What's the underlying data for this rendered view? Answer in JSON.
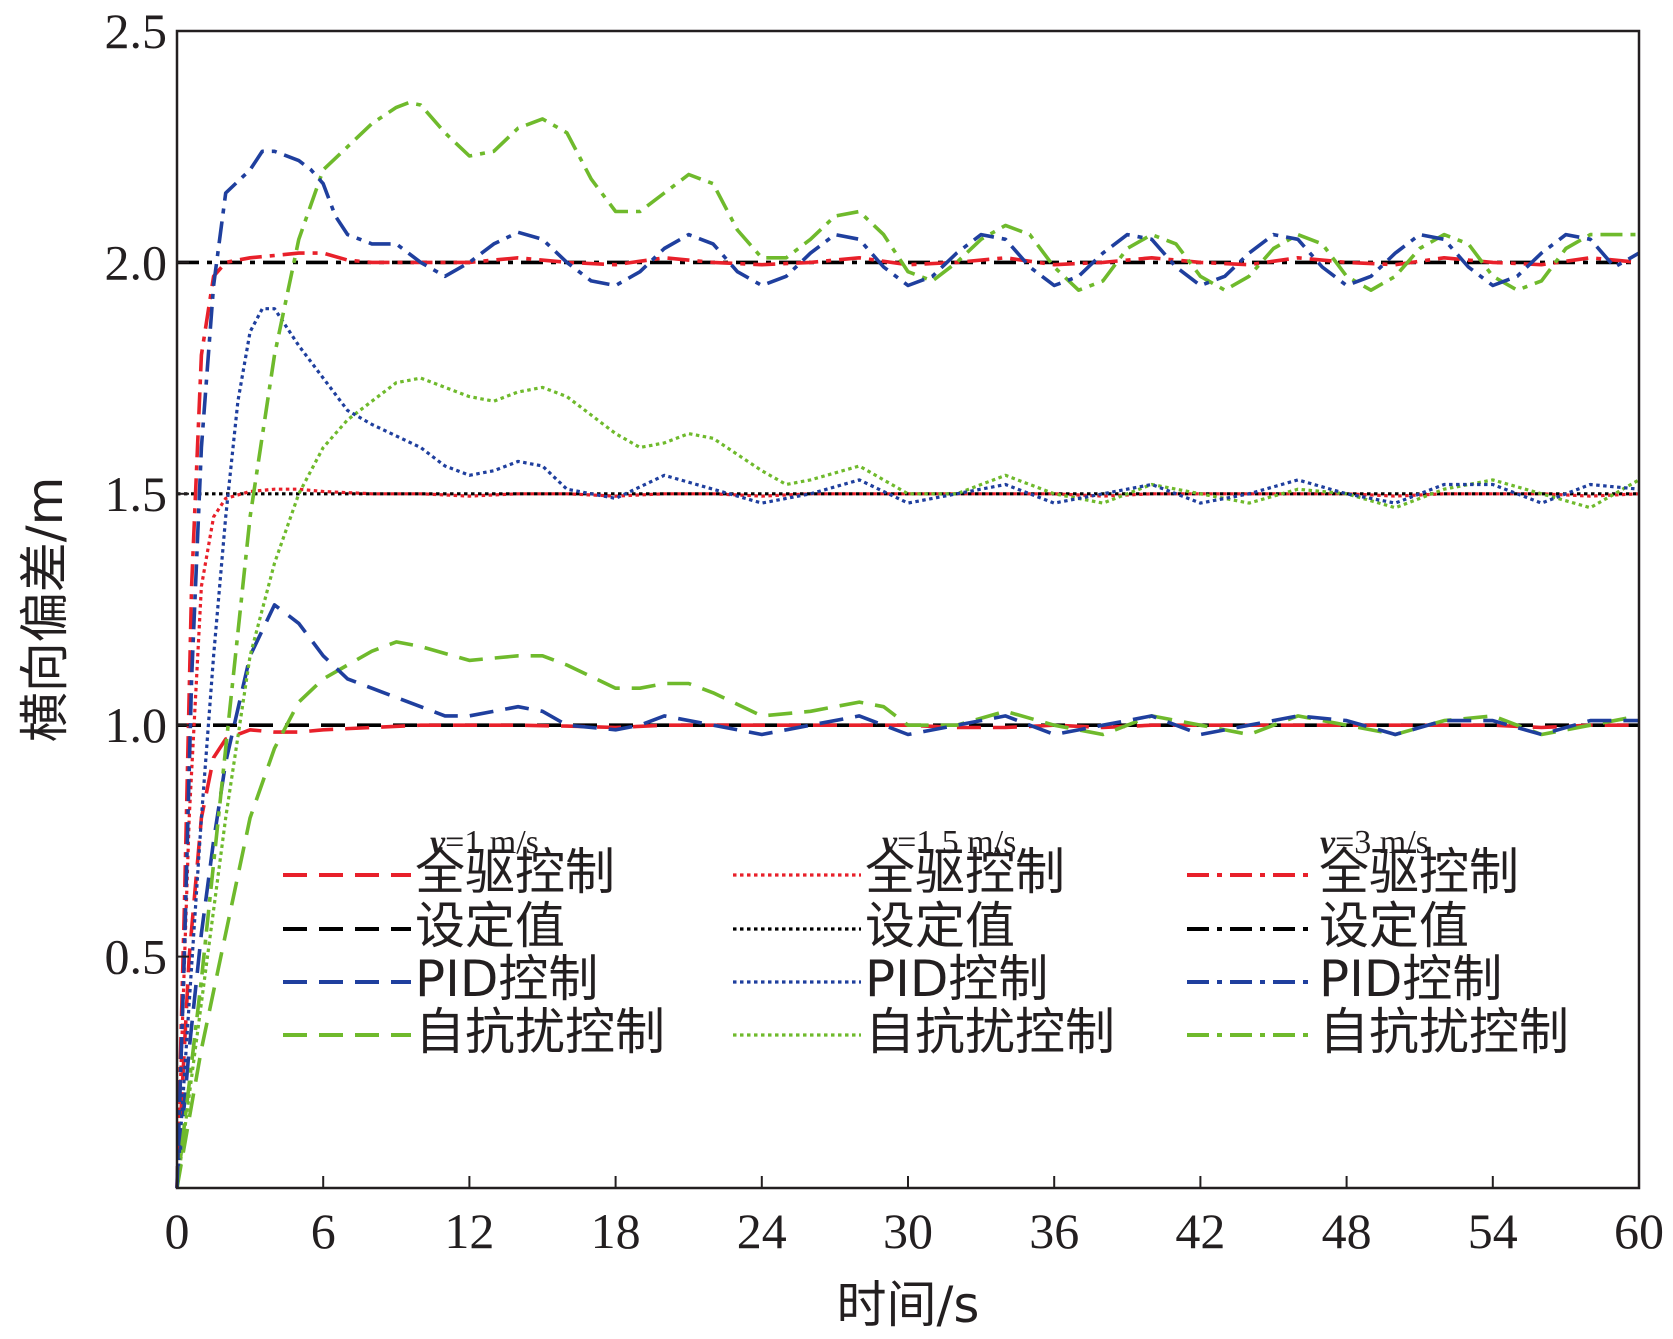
{
  "chart_data": {
    "type": "line",
    "xlabel": "时间/s",
    "ylabel": "横向偏差/m",
    "xlim": [
      0,
      60
    ],
    "ylim": [
      0,
      2.5
    ],
    "xticks": [
      0,
      6,
      12,
      18,
      24,
      30,
      36,
      42,
      48,
      54,
      60
    ],
    "xtick_labels": [
      "0",
      "6",
      "12",
      "18",
      "24",
      "30",
      "36",
      "42",
      "48",
      "54",
      "60"
    ],
    "yticks": [
      0.5,
      1.0,
      1.5,
      2.0,
      2.5
    ],
    "ytick_labels": [
      "0.5",
      "1.0",
      "1.5",
      "2.0",
      "2.5"
    ],
    "grid": false,
    "legend_position": "bottom",
    "legend_groups": [
      {
        "speed_prefix": "v",
        "speed_value": "=1 m/s",
        "dash": "dashed"
      },
      {
        "speed_prefix": "v",
        "speed_value": "=1.5 m/s",
        "dash": "dotted"
      },
      {
        "speed_prefix": "v",
        "speed_value": "=3 m/s",
        "dash": "dashdot"
      }
    ],
    "series": [
      {
        "name": "全驱控制",
        "group": 0,
        "color": "#e8202a",
        "x": [
          0,
          0.5,
          1,
          1.5,
          2,
          3,
          4,
          5,
          6,
          8,
          10,
          12,
          14,
          16,
          18,
          20,
          22,
          24,
          26,
          28,
          30,
          32,
          34,
          36,
          38,
          40,
          42,
          44,
          46,
          48,
          50,
          52,
          54,
          56,
          58,
          60
        ],
        "y": [
          0,
          0.5,
          0.8,
          0.93,
          0.97,
          0.99,
          0.985,
          0.985,
          0.99,
          0.995,
          1.0,
          1.0,
          1.0,
          0.998,
          0.995,
          1.0,
          1.0,
          1.0,
          1.0,
          1.0,
          1.0,
          0.995,
          0.995,
          1.0,
          0.995,
          1.0,
          1.0,
          1.0,
          1.0,
          1.0,
          1.0,
          1.0,
          1.0,
          0.995,
          1.0,
          1.0
        ]
      },
      {
        "name": "设定值",
        "group": 0,
        "color": "#000000",
        "x": [
          0,
          60
        ],
        "y": [
          1.0,
          1.0
        ]
      },
      {
        "name": "PID控制",
        "group": 0,
        "color": "#1f3f9e",
        "x": [
          0,
          0.5,
          1,
          1.5,
          2,
          3,
          4,
          5,
          6,
          7,
          8,
          10,
          11,
          12,
          14,
          15,
          16,
          18,
          19,
          20,
          22,
          24,
          26,
          28,
          30,
          32,
          34,
          36,
          38,
          40,
          42,
          44,
          46,
          48,
          50,
          52,
          54,
          56,
          58,
          60
        ],
        "y": [
          0,
          0.3,
          0.55,
          0.75,
          0.92,
          1.15,
          1.26,
          1.22,
          1.15,
          1.1,
          1.08,
          1.04,
          1.02,
          1.02,
          1.04,
          1.03,
          1.0,
          0.99,
          1.0,
          1.02,
          1.0,
          0.98,
          1.0,
          1.02,
          0.98,
          1.0,
          1.02,
          0.98,
          1.0,
          1.02,
          0.98,
          1.0,
          1.02,
          1.01,
          0.98,
          1.01,
          1.01,
          0.98,
          1.01,
          1.01
        ]
      },
      {
        "name": "自抗扰控制",
        "group": 0,
        "color": "#6fba2c",
        "x": [
          0,
          1,
          2,
          3,
          4,
          5,
          6,
          7,
          8,
          9,
          10,
          12,
          14,
          15,
          16,
          18,
          19,
          20,
          21,
          22,
          24,
          26,
          28,
          29,
          30,
          32,
          34,
          36,
          38,
          40,
          42,
          44,
          46,
          48,
          50,
          52,
          54,
          56,
          58,
          60
        ],
        "y": [
          0,
          0.3,
          0.55,
          0.8,
          0.95,
          1.05,
          1.1,
          1.13,
          1.16,
          1.18,
          1.17,
          1.14,
          1.15,
          1.15,
          1.13,
          1.08,
          1.08,
          1.09,
          1.09,
          1.07,
          1.02,
          1.03,
          1.05,
          1.04,
          1.0,
          1.0,
          1.03,
          1.0,
          0.98,
          1.02,
          1.0,
          0.98,
          1.02,
          1.0,
          0.98,
          1.01,
          1.02,
          0.98,
          1.0,
          1.02
        ]
      },
      {
        "name": "全驱控制",
        "group": 1,
        "color": "#e8202a",
        "x": [
          0,
          0.5,
          1,
          1.5,
          2,
          3,
          4,
          5,
          6,
          8,
          10,
          12,
          14,
          16,
          18,
          20,
          22,
          24,
          26,
          28,
          30,
          32,
          34,
          36,
          38,
          40,
          42,
          44,
          46,
          48,
          50,
          52,
          54,
          56,
          58,
          60
        ],
        "y": [
          0,
          0.8,
          1.3,
          1.45,
          1.49,
          1.505,
          1.51,
          1.51,
          1.505,
          1.5,
          1.5,
          1.495,
          1.5,
          1.5,
          1.495,
          1.5,
          1.5,
          1.495,
          1.5,
          1.5,
          1.5,
          1.5,
          1.5,
          1.5,
          1.495,
          1.5,
          1.5,
          1.5,
          1.5,
          1.5,
          1.495,
          1.5,
          1.5,
          1.5,
          1.495,
          1.5
        ]
      },
      {
        "name": "设定值",
        "group": 1,
        "color": "#000000",
        "x": [
          0,
          60
        ],
        "y": [
          1.5,
          1.5
        ]
      },
      {
        "name": "PID控制",
        "group": 1,
        "color": "#1f3f9e",
        "x": [
          0,
          0.5,
          1,
          1.5,
          2,
          2.5,
          3,
          3.5,
          4,
          5,
          6,
          7,
          8,
          10,
          11,
          12,
          13,
          14,
          15,
          16,
          18,
          20,
          22,
          24,
          26,
          28,
          30,
          32,
          34,
          36,
          38,
          40,
          42,
          44,
          46,
          48,
          50,
          52,
          54,
          56,
          58,
          60
        ],
        "y": [
          0,
          0.4,
          0.8,
          1.15,
          1.45,
          1.7,
          1.85,
          1.9,
          1.9,
          1.82,
          1.75,
          1.68,
          1.65,
          1.6,
          1.56,
          1.54,
          1.55,
          1.57,
          1.56,
          1.51,
          1.49,
          1.54,
          1.51,
          1.48,
          1.5,
          1.53,
          1.48,
          1.5,
          1.52,
          1.48,
          1.5,
          1.52,
          1.48,
          1.5,
          1.53,
          1.5,
          1.48,
          1.52,
          1.52,
          1.48,
          1.52,
          1.51
        ]
      },
      {
        "name": "自抗扰控制",
        "group": 1,
        "color": "#6fba2c",
        "x": [
          0,
          1,
          2,
          3,
          4,
          5,
          6,
          7,
          8,
          9,
          10,
          12,
          13,
          14,
          15,
          16,
          18,
          19,
          20,
          21,
          22,
          24,
          25,
          26,
          28,
          30,
          32,
          34,
          36,
          38,
          40,
          42,
          44,
          46,
          48,
          50,
          52,
          54,
          56,
          58,
          60
        ],
        "y": [
          0,
          0.4,
          0.8,
          1.15,
          1.35,
          1.5,
          1.6,
          1.66,
          1.7,
          1.74,
          1.75,
          1.71,
          1.7,
          1.72,
          1.73,
          1.71,
          1.63,
          1.6,
          1.61,
          1.63,
          1.62,
          1.55,
          1.52,
          1.53,
          1.56,
          1.5,
          1.5,
          1.54,
          1.5,
          1.48,
          1.52,
          1.5,
          1.48,
          1.51,
          1.5,
          1.47,
          1.51,
          1.53,
          1.5,
          1.47,
          1.53
        ]
      },
      {
        "name": "全驱控制",
        "group": 2,
        "color": "#e8202a",
        "x": [
          0,
          0.3,
          0.6,
          1,
          1.5,
          2,
          3,
          4,
          5,
          6,
          7,
          8,
          10,
          12,
          14,
          16,
          18,
          20,
          22,
          24,
          26,
          28,
          30,
          32,
          34,
          36,
          38,
          40,
          42,
          44,
          46,
          48,
          50,
          52,
          54,
          56,
          58,
          60
        ],
        "y": [
          0,
          0.6,
          1.3,
          1.8,
          1.97,
          2.0,
          2.01,
          2.015,
          2.02,
          2.02,
          2.005,
          2.0,
          2.0,
          2.0,
          2.01,
          2.0,
          1.995,
          2.01,
          2.0,
          1.995,
          2.0,
          2.01,
          1.995,
          2.0,
          2.01,
          1.995,
          2.0,
          2.01,
          2.0,
          1.995,
          2.01,
          2.0,
          1.995,
          2.01,
          2.0,
          1.995,
          2.01,
          2.0
        ]
      },
      {
        "name": "设定值",
        "group": 2,
        "color": "#000000",
        "x": [
          0,
          60
        ],
        "y": [
          2.0,
          2.0
        ]
      },
      {
        "name": "PID控制",
        "group": 2,
        "color": "#1f3f9e",
        "x": [
          0,
          0.3,
          0.6,
          1,
          1.5,
          2,
          3,
          3.5,
          4,
          5,
          5.5,
          6,
          6.5,
          7,
          8,
          9,
          10,
          11,
          12,
          13,
          14,
          15,
          16,
          17,
          18,
          19,
          20,
          21,
          22,
          23,
          24,
          25,
          26,
          27,
          28,
          29,
          30,
          31,
          32,
          33,
          34,
          35,
          36,
          37,
          38,
          39,
          40,
          41,
          42,
          43,
          44,
          45,
          46,
          47,
          48,
          49,
          50,
          51,
          52,
          53,
          54,
          55,
          56,
          57,
          58,
          59,
          60
        ],
        "y": [
          0,
          0.5,
          1.1,
          1.6,
          1.95,
          2.15,
          2.2,
          2.24,
          2.24,
          2.22,
          2.2,
          2.17,
          2.1,
          2.06,
          2.04,
          2.04,
          2.0,
          1.97,
          2.0,
          2.04,
          2.065,
          2.05,
          2.0,
          1.96,
          1.95,
          1.98,
          2.03,
          2.06,
          2.04,
          1.98,
          1.95,
          1.97,
          2.02,
          2.06,
          2.05,
          1.99,
          1.95,
          1.97,
          2.02,
          2.06,
          2.05,
          1.99,
          1.95,
          1.97,
          2.02,
          2.06,
          2.05,
          1.99,
          1.95,
          1.97,
          2.02,
          2.06,
          2.05,
          1.99,
          1.95,
          1.97,
          2.02,
          2.06,
          2.05,
          1.99,
          1.95,
          1.97,
          2.02,
          2.06,
          2.05,
          1.99,
          2.02
        ]
      },
      {
        "name": "自抗扰控制",
        "group": 2,
        "color": "#6fba2c",
        "x": [
          0,
          1,
          2,
          3,
          4,
          5,
          6,
          7,
          8,
          9,
          9.5,
          10,
          11,
          12,
          13,
          14,
          15,
          16,
          17,
          18,
          19,
          20,
          21,
          22,
          23,
          24,
          25,
          26,
          27,
          28,
          29,
          30,
          31,
          32,
          33,
          34,
          35,
          36,
          37,
          38,
          39,
          40,
          41,
          42,
          43,
          44,
          45,
          46,
          47,
          48,
          49,
          50,
          51,
          52,
          53,
          54,
          55,
          56,
          57,
          58,
          59,
          60
        ],
        "y": [
          0,
          0.45,
          0.95,
          1.45,
          1.8,
          2.05,
          2.2,
          2.25,
          2.3,
          2.335,
          2.345,
          2.34,
          2.28,
          2.23,
          2.24,
          2.29,
          2.31,
          2.28,
          2.18,
          2.11,
          2.11,
          2.15,
          2.19,
          2.17,
          2.07,
          2.01,
          2.01,
          2.05,
          2.1,
          2.11,
          2.06,
          1.98,
          1.96,
          2.0,
          2.05,
          2.08,
          2.06,
          1.99,
          1.94,
          1.96,
          2.03,
          2.06,
          2.04,
          1.97,
          1.94,
          1.97,
          2.03,
          2.06,
          2.04,
          1.97,
          1.94,
          1.97,
          2.03,
          2.06,
          2.04,
          1.97,
          1.94,
          1.96,
          2.03,
          2.06,
          2.06,
          2.06
        ]
      }
    ]
  }
}
